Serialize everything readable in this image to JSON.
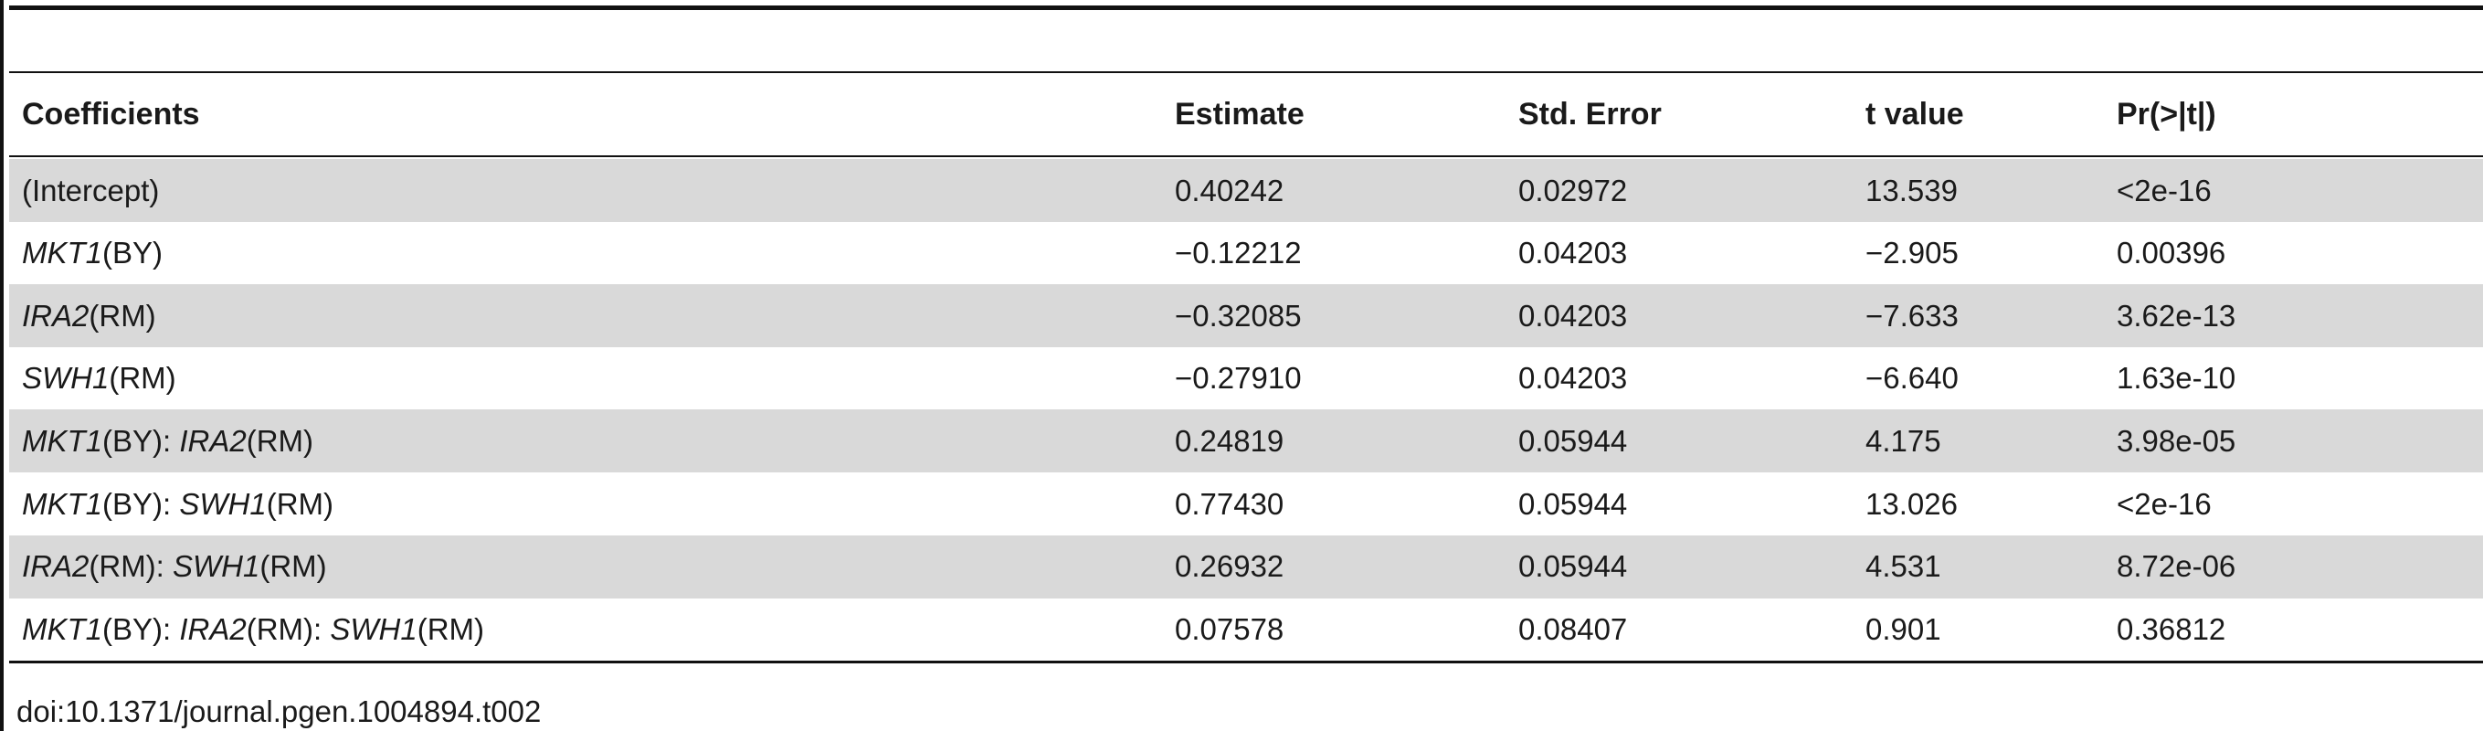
{
  "table": {
    "header": [
      "Coefficients",
      "Estimate",
      "Std. Error",
      "t value",
      "Pr(>|t|)"
    ],
    "rows": [
      {
        "coef": [
          {
            "t": "(Intercept)",
            "i": false
          }
        ],
        "estimate": "0.40242",
        "std_error": "0.02972",
        "t_value": "13.539",
        "p_value": "<2e-16"
      },
      {
        "coef": [
          {
            "t": "MKT1",
            "i": true
          },
          {
            "t": "(BY)",
            "i": false
          }
        ],
        "estimate": "−0.12212",
        "std_error": "0.04203",
        "t_value": "−2.905",
        "p_value": "0.00396"
      },
      {
        "coef": [
          {
            "t": "IRA2",
            "i": true
          },
          {
            "t": "(RM)",
            "i": false
          }
        ],
        "estimate": "−0.32085",
        "std_error": "0.04203",
        "t_value": "−7.633",
        "p_value": "3.62e-13"
      },
      {
        "coef": [
          {
            "t": "SWH1",
            "i": true
          },
          {
            "t": "(RM)",
            "i": false
          }
        ],
        "estimate": "−0.27910",
        "std_error": "0.04203",
        "t_value": "−6.640",
        "p_value": "1.63e-10"
      },
      {
        "coef": [
          {
            "t": "MKT1",
            "i": true
          },
          {
            "t": "(BY): ",
            "i": false
          },
          {
            "t": "IRA2",
            "i": true
          },
          {
            "t": "(RM)",
            "i": false
          }
        ],
        "estimate": "0.24819",
        "std_error": "0.05944",
        "t_value": "4.175",
        "p_value": "3.98e-05"
      },
      {
        "coef": [
          {
            "t": "MKT1",
            "i": true
          },
          {
            "t": "(BY): ",
            "i": false
          },
          {
            "t": "SWH1",
            "i": true
          },
          {
            "t": "(RM)",
            "i": false
          }
        ],
        "estimate": "0.77430",
        "std_error": "0.05944",
        "t_value": "13.026",
        "p_value": "<2e-16"
      },
      {
        "coef": [
          {
            "t": "IRA2",
            "i": true
          },
          {
            "t": "(RM): ",
            "i": false
          },
          {
            "t": "SWH1",
            "i": true
          },
          {
            "t": "(RM)",
            "i": false
          }
        ],
        "estimate": "0.26932",
        "std_error": "0.05944",
        "t_value": "4.531",
        "p_value": "8.72e-06"
      },
      {
        "coef": [
          {
            "t": "MKT1",
            "i": true
          },
          {
            "t": "(BY): ",
            "i": false
          },
          {
            "t": "IRA2",
            "i": true
          },
          {
            "t": "(RM): ",
            "i": false
          },
          {
            "t": "SWH1",
            "i": true
          },
          {
            "t": "(RM)",
            "i": false
          }
        ],
        "estimate": "0.07578",
        "std_error": "0.08407",
        "t_value": "0.901",
        "p_value": "0.36812"
      }
    ]
  },
  "doi": "doi:10.1371/journal.pgen.1004894.t002"
}
